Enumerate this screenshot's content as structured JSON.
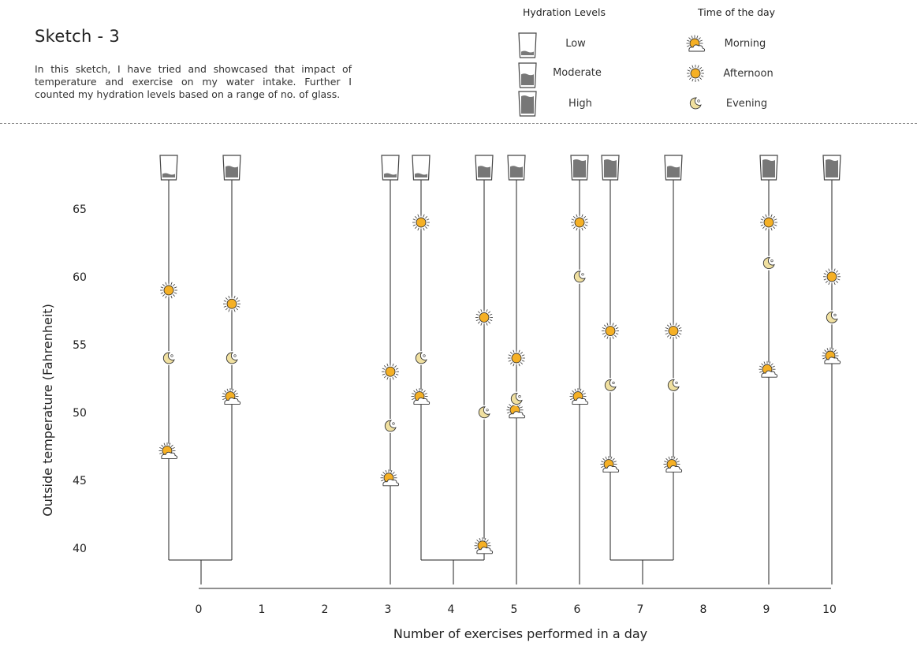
{
  "header": {
    "title": "Sketch - 3",
    "description": "In this sketch, I have tried and showcased that impact of temperature and exercise on my water intake. Further I counted my hydration levels based on a range of no. of glass."
  },
  "legend": {
    "hydration": {
      "heading": "Hydration Levels",
      "items": [
        {
          "label": "Low",
          "level": "low"
        },
        {
          "label": "Moderate",
          "level": "moderate"
        },
        {
          "label": "High",
          "level": "high"
        }
      ]
    },
    "time": {
      "heading": "Time of the day",
      "items": [
        {
          "label": "Morning",
          "icon": "sun-cloud-icon"
        },
        {
          "label": "Afternoon",
          "icon": "sun-icon"
        },
        {
          "label": "Evening",
          "icon": "moon-icon"
        }
      ]
    }
  },
  "colors": {
    "sun": "#f5b025",
    "moon": "#f0e0a0",
    "glass_fill": "#777777",
    "line": "#222222"
  },
  "chart_data": {
    "type": "scatter",
    "xlabel": "Number of exercises performed in a day",
    "ylabel": "Outside temperature (Fahrenheit)",
    "xticks": [
      0,
      1,
      2,
      3,
      4,
      5,
      6,
      7,
      8,
      9,
      10
    ],
    "yticks": [
      40,
      45,
      50,
      55,
      60,
      65
    ],
    "ylim": [
      39,
      67
    ],
    "days": [
      {
        "x": 0,
        "hydration": "low",
        "morning": 47,
        "afternoon": 59,
        "evening": 54
      },
      {
        "x": 0,
        "hydration": "moderate",
        "morning": 51,
        "afternoon": 58,
        "evening": 54
      },
      {
        "x": 3,
        "hydration": "low",
        "morning": 45,
        "afternoon": 53,
        "evening": 49
      },
      {
        "x": 4,
        "hydration": "low",
        "morning": 51,
        "afternoon": 64,
        "evening": 54
      },
      {
        "x": 4,
        "hydration": "moderate",
        "morning": 40,
        "afternoon": 57,
        "evening": 50
      },
      {
        "x": 5,
        "hydration": "moderate",
        "morning": 50,
        "afternoon": 54,
        "evening": 51
      },
      {
        "x": 6,
        "hydration": "high",
        "morning": 51,
        "afternoon": 64,
        "evening": 60
      },
      {
        "x": 7,
        "hydration": "high",
        "morning": 46,
        "afternoon": 56,
        "evening": 52
      },
      {
        "x": 7,
        "hydration": "moderate",
        "morning": 46,
        "afternoon": 56,
        "evening": 52
      },
      {
        "x": 9,
        "hydration": "high",
        "morning": 53,
        "afternoon": 64,
        "evening": 61
      },
      {
        "x": 10,
        "hydration": "high",
        "morning": 54,
        "afternoon": 60,
        "evening": 57
      }
    ]
  }
}
